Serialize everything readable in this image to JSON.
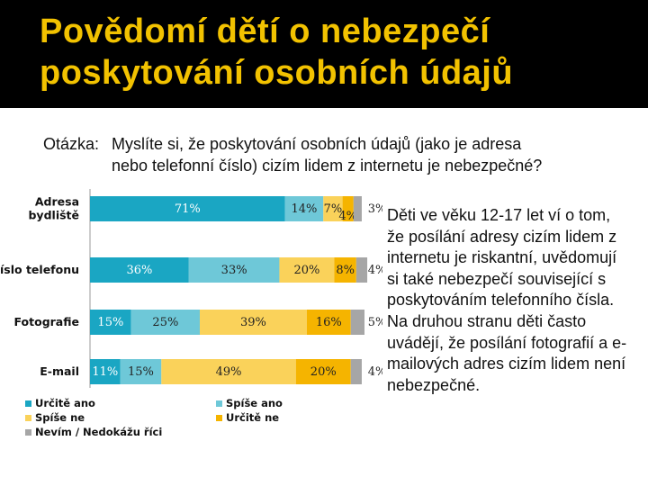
{
  "title": "Povědomí dětí o nebezpečí poskytování osobních údajů",
  "question": {
    "label": "Otázka:",
    "line1": "Myslíte si, že poskytování osobních údajů (jako je adresa",
    "line2": "nebo telefonní číslo) cizím lidem z internetu je nebezpečné?"
  },
  "side_text": "Děti ve věku 12-17 let ví o tom, že posílání adresy cizím lidem z internetu je riskantní, uvědomují si také nebezpečí související s poskytováním telefonního čísla. Na druhou stranu děti často uvádějí, že posílání fotografií a e-mailových adres cizím lidem není nebezpečné.",
  "chart_data": {
    "type": "bar",
    "orientation": "horizontal",
    "stacked": true,
    "categories": [
      "Adresa\nbydliště",
      "Číslo telefonu",
      "Fotografie",
      "E-mail"
    ],
    "series": [
      {
        "name": "Určitě ano",
        "values": [
          71,
          36,
          15,
          11
        ],
        "color": "#1aa6c3"
      },
      {
        "name": "Spíše ano",
        "values": [
          14,
          33,
          25,
          15
        ],
        "color": "#6ec8d8"
      },
      {
        "name": "Spíše ne",
        "values": [
          7,
          20,
          39,
          49
        ],
        "color": "#fad25a"
      },
      {
        "name": "Určitě ne",
        "values": [
          4,
          8,
          16,
          20
        ],
        "color": "#f5b400"
      },
      {
        "name": "Nevím / Nedokážu říci",
        "values": [
          3,
          4,
          5,
          4
        ],
        "color": "#a6a6a6"
      }
    ],
    "value_suffix": "%",
    "xlim": [
      0,
      100
    ],
    "legend": "bottom",
    "grid": false
  }
}
